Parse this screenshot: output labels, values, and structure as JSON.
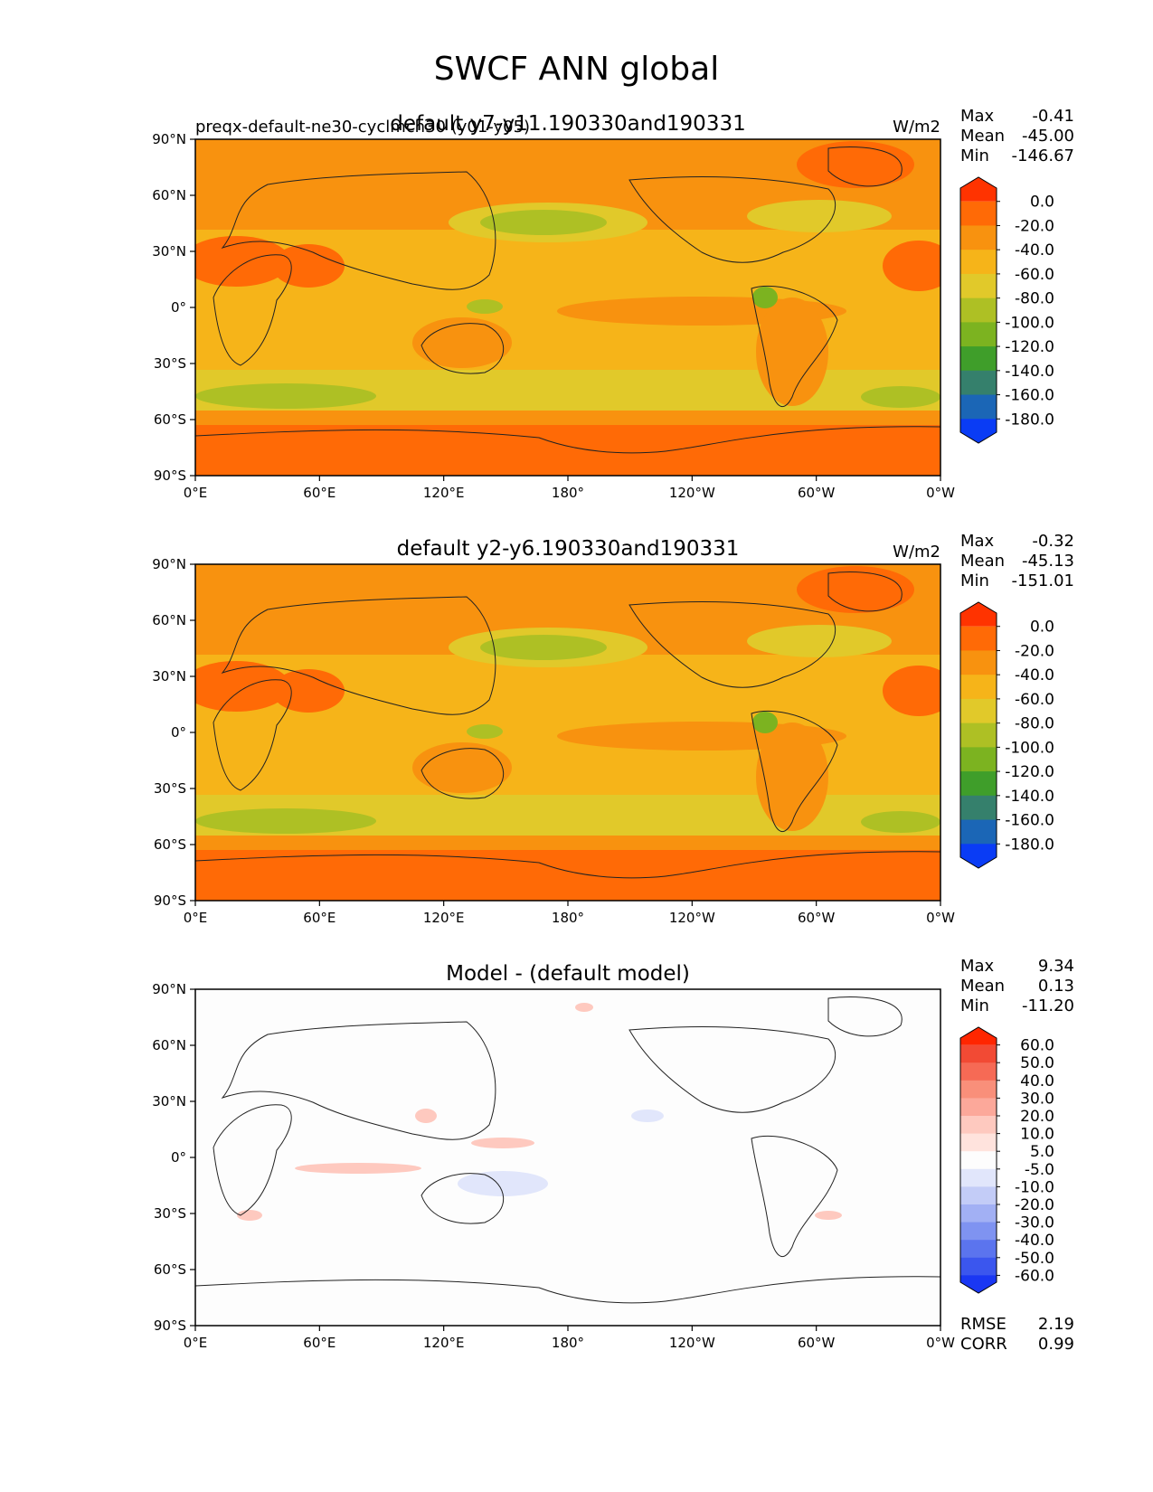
{
  "figure": {
    "title": "SWCF ANN global"
  },
  "axes": {
    "lat_labels": [
      "90°N",
      "60°N",
      "30°N",
      "0°",
      "30°S",
      "60°S",
      "90°S"
    ],
    "lon_labels": [
      "0°E",
      "60°E",
      "120°E",
      "180°",
      "120°W",
      "60°W",
      "0°W"
    ]
  },
  "panels": [
    {
      "id": "test",
      "left_title": "preqx-default-ne30-cyclmch30 (y01-y05)",
      "center_title": "default y7-y11.190330and190331",
      "units": "W/m2",
      "stats": [
        {
          "label": "Max",
          "value": "-0.41"
        },
        {
          "label": "Mean",
          "value": "-45.00"
        },
        {
          "label": "Min",
          "value": "-146.67"
        }
      ],
      "colorbar_labels": [
        "0.0",
        "-20.0",
        "-40.0",
        "-60.0",
        "-80.0",
        "-100.0",
        "-120.0",
        "-140.0",
        "-160.0",
        "-180.0"
      ],
      "colorbar_colors": [
        "#ff3300",
        "#ff6a06",
        "#f8920f",
        "#f6b419",
        "#e1c92a",
        "#aec024",
        "#7cb320",
        "#3f9e2a",
        "#35806c",
        "#1b66b6",
        "#0a3cf5"
      ]
    },
    {
      "id": "reference",
      "left_title": "",
      "center_title": "default y2-y6.190330and190331",
      "units": "W/m2",
      "stats": [
        {
          "label": "Max",
          "value": "-0.32"
        },
        {
          "label": "Mean",
          "value": "-45.13"
        },
        {
          "label": "Min",
          "value": "-151.01"
        }
      ],
      "colorbar_labels": [
        "0.0",
        "-20.0",
        "-40.0",
        "-60.0",
        "-80.0",
        "-100.0",
        "-120.0",
        "-140.0",
        "-160.0",
        "-180.0"
      ],
      "colorbar_colors": [
        "#ff3300",
        "#ff6a06",
        "#f8920f",
        "#f6b419",
        "#e1c92a",
        "#aec024",
        "#7cb320",
        "#3f9e2a",
        "#35806c",
        "#1b66b6",
        "#0a3cf5"
      ]
    },
    {
      "id": "difference",
      "left_title": "",
      "center_title": "Model - (default model)",
      "units": "",
      "stats": [
        {
          "label": "Max",
          "value": "9.34"
        },
        {
          "label": "Mean",
          "value": "0.13"
        },
        {
          "label": "Min",
          "value": "-11.20"
        }
      ],
      "extra_stats": [
        {
          "label": "RMSE",
          "value": "2.19"
        },
        {
          "label": "CORR",
          "value": "0.99"
        }
      ],
      "colorbar_labels": [
        "60.0",
        "50.0",
        "40.0",
        "30.0",
        "20.0",
        "10.0",
        "5.0",
        "-5.0",
        "-10.0",
        "-20.0",
        "-30.0",
        "-40.0",
        "-50.0",
        "-60.0"
      ],
      "colorbar_colors": [
        "#ff2600",
        "#f24a34",
        "#f66a55",
        "#f98f7a",
        "#fca89a",
        "#fec9bf",
        "#ffe3dd",
        "#fdfdfd",
        "#e1e6fb",
        "#c3ccf7",
        "#a2b0f4",
        "#7f93f1",
        "#5b74ee",
        "#3b56ee",
        "#1a37f3"
      ]
    }
  ]
}
